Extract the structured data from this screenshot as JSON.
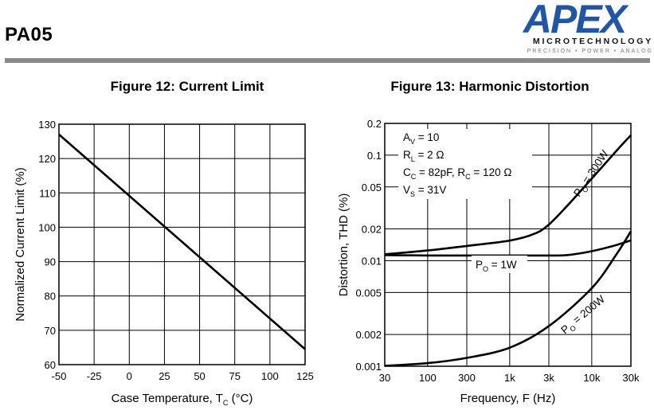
{
  "header": {
    "part_number": "PA05",
    "brand": "APEX",
    "company": "MICROTECHNOLOGY",
    "tagline": "PRECISION • POWER • ANALOG"
  },
  "chart_data": [
    {
      "type": "line",
      "title": "Figure 12: Current Limit",
      "xlabel_main": "Case Temperature, T",
      "xlabel_sub": "C",
      "xlabel_unit": " (°C)",
      "ylabel": "Normalized Current Limit (%)",
      "xlim": [
        -50,
        125
      ],
      "ylim": [
        60,
        130
      ],
      "x_ticks": [
        -50,
        -25,
        0,
        25,
        50,
        75,
        100,
        125
      ],
      "y_ticks": [
        60,
        70,
        80,
        90,
        100,
        110,
        120,
        130
      ],
      "grid": true,
      "series": [
        {
          "x": [
            -50,
            125
          ],
          "y": [
            127,
            64.5
          ]
        }
      ]
    },
    {
      "type": "line",
      "title": "Figure 13: Harmonic Distortion",
      "xlabel": "Frequency, F (Hz)",
      "ylabel": "Distortion, THD (%)",
      "x_scale": "log",
      "y_scale": "log",
      "xlim": [
        30,
        30000
      ],
      "ylim": [
        0.001,
        0.2
      ],
      "x_ticks": [
        {
          "v": 30,
          "label": "30"
        },
        {
          "v": 100,
          "label": "100"
        },
        {
          "v": 300,
          "label": "300"
        },
        {
          "v": 1000,
          "label": "1k"
        },
        {
          "v": 3000,
          "label": "3k"
        },
        {
          "v": 10000,
          "label": "10k"
        },
        {
          "v": 30000,
          "label": "30k"
        }
      ],
      "y_ticks": [
        {
          "v": 0.001,
          "label": "0.001"
        },
        {
          "v": 0.002,
          "label": "0.002"
        },
        {
          "v": 0.005,
          "label": "0.005"
        },
        {
          "v": 0.01,
          "label": "0.01"
        },
        {
          "v": 0.02,
          "label": "0.02"
        },
        {
          "v": 0.05,
          "label": "0.05"
        },
        {
          "v": 0.1,
          "label": "0.1"
        },
        {
          "v": 0.2,
          "label": "0.2"
        }
      ],
      "grid": true,
      "conditions": [
        {
          "main": "A",
          "sub": "V",
          "rest": " = 10"
        },
        {
          "main": "R",
          "sub": "L",
          "rest": " = 2 Ω"
        },
        {
          "main": "C",
          "sub": "C",
          "rest": " = 82pF, R",
          "sub2": "C",
          "rest2": " = 120 Ω"
        },
        {
          "main": "V",
          "sub": "S",
          "rest": " = 31V"
        }
      ],
      "series": [
        {
          "name": "P",
          "name_sub": "O",
          "name_rest": " = 300W",
          "x": [
            30,
            100,
            300,
            1000,
            2000,
            3000,
            5000,
            10000,
            20000,
            30000
          ],
          "y": [
            0.0115,
            0.0125,
            0.0138,
            0.0155,
            0.018,
            0.022,
            0.033,
            0.06,
            0.11,
            0.155
          ]
        },
        {
          "name": "P",
          "name_sub": "O",
          "name_rest": " = 1W",
          "x": [
            30,
            100,
            300,
            1000,
            3000,
            5000,
            10000,
            20000,
            30000
          ],
          "y": [
            0.0113,
            0.0112,
            0.0112,
            0.0112,
            0.0112,
            0.0113,
            0.0123,
            0.0141,
            0.0156
          ]
        },
        {
          "name": "P",
          "name_sub": "O",
          "name_rest": " = 200W",
          "x": [
            30,
            100,
            300,
            1000,
            3000,
            10000,
            20000,
            30000
          ],
          "y": [
            0.00101,
            0.00107,
            0.0012,
            0.0015,
            0.0024,
            0.0055,
            0.0115,
            0.019
          ]
        }
      ]
    }
  ]
}
